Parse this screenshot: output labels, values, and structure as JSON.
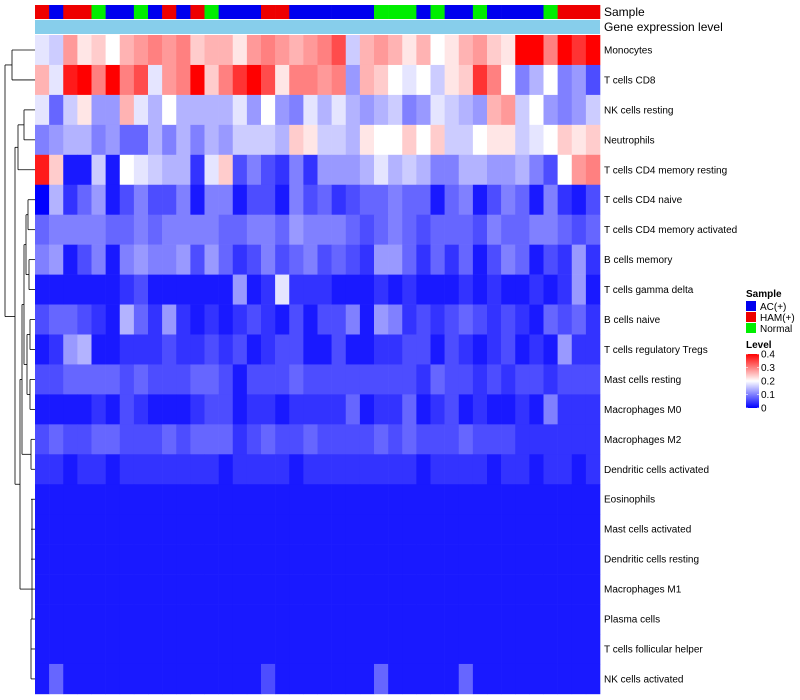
{
  "chart_data": {
    "type": "heatmap",
    "title": "",
    "annotation_tracks": [
      {
        "name": "Sample",
        "key": "sample"
      },
      {
        "name": "Gene expression level",
        "key": "level_band"
      }
    ],
    "annotation_colors": {
      "Sample": {
        "AC(+)": "#0000ee",
        "HAM(+)": "#ee0000",
        "Normal": "#00ee00"
      },
      "Gene expression level": "#87ceeb"
    },
    "columns": [
      {
        "sample": "HAM(+)"
      },
      {
        "sample": "AC(+)"
      },
      {
        "sample": "HAM(+)"
      },
      {
        "sample": "HAM(+)"
      },
      {
        "sample": "Normal"
      },
      {
        "sample": "AC(+)"
      },
      {
        "sample": "AC(+)"
      },
      {
        "sample": "Normal"
      },
      {
        "sample": "AC(+)"
      },
      {
        "sample": "HAM(+)"
      },
      {
        "sample": "AC(+)"
      },
      {
        "sample": "HAM(+)"
      },
      {
        "sample": "Normal"
      },
      {
        "sample": "AC(+)"
      },
      {
        "sample": "AC(+)"
      },
      {
        "sample": "AC(+)"
      },
      {
        "sample": "HAM(+)"
      },
      {
        "sample": "HAM(+)"
      },
      {
        "sample": "AC(+)"
      },
      {
        "sample": "AC(+)"
      },
      {
        "sample": "AC(+)"
      },
      {
        "sample": "AC(+)"
      },
      {
        "sample": "AC(+)"
      },
      {
        "sample": "AC(+)"
      },
      {
        "sample": "Normal"
      },
      {
        "sample": "Normal"
      },
      {
        "sample": "Normal"
      },
      {
        "sample": "AC(+)"
      },
      {
        "sample": "Normal"
      },
      {
        "sample": "AC(+)"
      },
      {
        "sample": "AC(+)"
      },
      {
        "sample": "Normal"
      },
      {
        "sample": "AC(+)"
      },
      {
        "sample": "AC(+)"
      },
      {
        "sample": "AC(+)"
      },
      {
        "sample": "AC(+)"
      },
      {
        "sample": "Normal"
      },
      {
        "sample": "HAM(+)"
      },
      {
        "sample": "HAM(+)"
      },
      {
        "sample": "HAM(+)"
      }
    ],
    "rows": [
      "Monocytes",
      "T cells CD8",
      "NK cells resting",
      "Neutrophils",
      "T cells CD4 memory resting",
      "T cells CD4 naive",
      "T cells CD4 memory activated",
      "B cells memory",
      "T cells gamma delta",
      "B cells naive",
      "T cells regulatory  Tregs",
      "Mast cells resting",
      "Macrophages M0",
      "Macrophages M2",
      "Dendritic cells activated",
      "Eosinophils",
      "Mast cells activated",
      "Dendritic cells resting",
      "Macrophages M1",
      "Plasma cells",
      "T cells follicular helper",
      "NK cells activated"
    ],
    "values": [
      [
        0.18,
        0.16,
        0.28,
        0.22,
        0.24,
        0.2,
        0.26,
        0.28,
        0.3,
        0.28,
        0.3,
        0.24,
        0.26,
        0.26,
        0.22,
        0.28,
        0.3,
        0.28,
        0.26,
        0.28,
        0.3,
        0.34,
        0.16,
        0.26,
        0.28,
        0.26,
        0.22,
        0.26,
        0.2,
        0.22,
        0.26,
        0.28,
        0.24,
        0.22,
        0.4,
        0.4,
        0.3,
        0.4,
        0.36,
        0.4
      ],
      [
        0.26,
        0.18,
        0.38,
        0.4,
        0.3,
        0.4,
        0.3,
        0.34,
        0.18,
        0.28,
        0.3,
        0.4,
        0.24,
        0.3,
        0.36,
        0.4,
        0.34,
        0.22,
        0.3,
        0.3,
        0.28,
        0.3,
        0.12,
        0.26,
        0.24,
        0.2,
        0.18,
        0.2,
        0.16,
        0.22,
        0.24,
        0.36,
        0.3,
        0.2,
        0.1,
        0.14,
        0.2,
        0.1,
        0.12,
        0.06
      ],
      [
        0.18,
        0.08,
        0.16,
        0.22,
        0.12,
        0.12,
        0.26,
        0.18,
        0.14,
        0.2,
        0.14,
        0.14,
        0.14,
        0.14,
        0.18,
        0.12,
        0.2,
        0.12,
        0.1,
        0.18,
        0.14,
        0.18,
        0.14,
        0.12,
        0.14,
        0.16,
        0.1,
        0.12,
        0.18,
        0.16,
        0.14,
        0.12,
        0.26,
        0.28,
        0.16,
        0.2,
        0.12,
        0.1,
        0.12,
        0.16
      ],
      [
        0.1,
        0.12,
        0.14,
        0.14,
        0.1,
        0.12,
        0.08,
        0.08,
        0.14,
        0.1,
        0.14,
        0.1,
        0.14,
        0.12,
        0.16,
        0.16,
        0.16,
        0.14,
        0.24,
        0.22,
        0.16,
        0.16,
        0.14,
        0.22,
        0.2,
        0.2,
        0.24,
        0.2,
        0.24,
        0.16,
        0.16,
        0.2,
        0.22,
        0.22,
        0.16,
        0.18,
        0.2,
        0.24,
        0.22,
        0.24
      ],
      [
        0.38,
        0.24,
        0.02,
        0.02,
        0.16,
        0.02,
        0.2,
        0.18,
        0.16,
        0.14,
        0.14,
        0.04,
        0.18,
        0.24,
        0.06,
        0.1,
        0.06,
        0.04,
        0.1,
        0.04,
        0.12,
        0.12,
        0.12,
        0.14,
        0.18,
        0.14,
        0.16,
        0.14,
        0.1,
        0.1,
        0.14,
        0.14,
        0.12,
        0.12,
        0.14,
        0.1,
        0.06,
        0.2,
        0.28,
        0.3
      ],
      [
        0.0,
        0.14,
        0.04,
        0.08,
        0.12,
        0.02,
        0.06,
        0.1,
        0.06,
        0.06,
        0.1,
        0.02,
        0.1,
        0.1,
        0.02,
        0.06,
        0.06,
        0.02,
        0.1,
        0.06,
        0.08,
        0.04,
        0.06,
        0.08,
        0.08,
        0.1,
        0.08,
        0.08,
        0.02,
        0.08,
        0.1,
        0.02,
        0.06,
        0.1,
        0.08,
        0.02,
        0.1,
        0.04,
        0.02,
        0.06
      ],
      [
        0.08,
        0.1,
        0.1,
        0.1,
        0.1,
        0.08,
        0.08,
        0.1,
        0.08,
        0.1,
        0.1,
        0.1,
        0.1,
        0.08,
        0.08,
        0.1,
        0.1,
        0.08,
        0.12,
        0.1,
        0.1,
        0.1,
        0.08,
        0.06,
        0.08,
        0.1,
        0.08,
        0.06,
        0.08,
        0.08,
        0.08,
        0.06,
        0.1,
        0.08,
        0.08,
        0.1,
        0.1,
        0.08,
        0.06,
        0.08
      ],
      [
        0.1,
        0.12,
        0.02,
        0.06,
        0.1,
        0.02,
        0.1,
        0.12,
        0.1,
        0.1,
        0.12,
        0.06,
        0.12,
        0.08,
        0.04,
        0.06,
        0.1,
        0.06,
        0.08,
        0.1,
        0.06,
        0.08,
        0.06,
        0.04,
        0.12,
        0.12,
        0.08,
        0.04,
        0.08,
        0.04,
        0.08,
        0.02,
        0.06,
        0.1,
        0.08,
        0.02,
        0.06,
        0.04,
        0.12,
        0.04
      ],
      [
        0.02,
        0.02,
        0.02,
        0.02,
        0.02,
        0.02,
        0.04,
        0.06,
        0.02,
        0.02,
        0.02,
        0.02,
        0.02,
        0.02,
        0.12,
        0.02,
        0.04,
        0.18,
        0.04,
        0.04,
        0.04,
        0.02,
        0.02,
        0.02,
        0.04,
        0.02,
        0.04,
        0.02,
        0.02,
        0.02,
        0.04,
        0.02,
        0.04,
        0.02,
        0.02,
        0.04,
        0.02,
        0.04,
        0.12,
        0.02
      ],
      [
        0.06,
        0.08,
        0.08,
        0.06,
        0.04,
        0.02,
        0.14,
        0.08,
        0.04,
        0.12,
        0.04,
        0.02,
        0.04,
        0.02,
        0.04,
        0.06,
        0.04,
        0.02,
        0.06,
        0.02,
        0.06,
        0.06,
        0.1,
        0.02,
        0.12,
        0.1,
        0.04,
        0.06,
        0.04,
        0.06,
        0.08,
        0.06,
        0.04,
        0.06,
        0.04,
        0.02,
        0.08,
        0.06,
        0.08,
        0.04
      ],
      [
        0.02,
        0.04,
        0.12,
        0.14,
        0.02,
        0.02,
        0.04,
        0.04,
        0.04,
        0.06,
        0.04,
        0.04,
        0.06,
        0.04,
        0.06,
        0.02,
        0.04,
        0.06,
        0.06,
        0.02,
        0.02,
        0.06,
        0.02,
        0.02,
        0.04,
        0.04,
        0.06,
        0.06,
        0.02,
        0.06,
        0.04,
        0.02,
        0.04,
        0.06,
        0.02,
        0.04,
        0.02,
        0.12,
        0.04,
        0.04
      ],
      [
        0.06,
        0.06,
        0.08,
        0.08,
        0.08,
        0.08,
        0.06,
        0.08,
        0.06,
        0.06,
        0.06,
        0.08,
        0.08,
        0.06,
        0.02,
        0.06,
        0.06,
        0.06,
        0.08,
        0.06,
        0.06,
        0.06,
        0.06,
        0.06,
        0.06,
        0.06,
        0.06,
        0.04,
        0.08,
        0.06,
        0.06,
        0.04,
        0.06,
        0.04,
        0.06,
        0.06,
        0.04,
        0.06,
        0.06,
        0.06
      ],
      [
        0.02,
        0.02,
        0.02,
        0.02,
        0.04,
        0.02,
        0.06,
        0.04,
        0.02,
        0.02,
        0.02,
        0.04,
        0.06,
        0.06,
        0.02,
        0.04,
        0.04,
        0.02,
        0.04,
        0.04,
        0.04,
        0.04,
        0.08,
        0.02,
        0.04,
        0.04,
        0.08,
        0.02,
        0.04,
        0.06,
        0.02,
        0.04,
        0.02,
        0.02,
        0.04,
        0.02,
        0.1,
        0.04,
        0.04,
        0.04
      ],
      [
        0.06,
        0.08,
        0.06,
        0.06,
        0.08,
        0.08,
        0.06,
        0.06,
        0.06,
        0.08,
        0.06,
        0.08,
        0.08,
        0.08,
        0.04,
        0.06,
        0.08,
        0.06,
        0.06,
        0.08,
        0.06,
        0.06,
        0.06,
        0.06,
        0.08,
        0.06,
        0.08,
        0.06,
        0.06,
        0.06,
        0.08,
        0.06,
        0.06,
        0.06,
        0.04,
        0.04,
        0.04,
        0.04,
        0.04,
        0.04
      ],
      [
        0.04,
        0.04,
        0.02,
        0.04,
        0.04,
        0.02,
        0.04,
        0.04,
        0.04,
        0.04,
        0.04,
        0.04,
        0.04,
        0.02,
        0.04,
        0.04,
        0.04,
        0.04,
        0.02,
        0.04,
        0.04,
        0.04,
        0.04,
        0.04,
        0.04,
        0.04,
        0.04,
        0.02,
        0.04,
        0.04,
        0.04,
        0.04,
        0.02,
        0.04,
        0.04,
        0.02,
        0.04,
        0.04,
        0.02,
        0.04
      ],
      [
        0.02,
        0.02,
        0.02,
        0.02,
        0.02,
        0.02,
        0.02,
        0.02,
        0.02,
        0.02,
        0.02,
        0.02,
        0.02,
        0.02,
        0.02,
        0.02,
        0.02,
        0.02,
        0.02,
        0.02,
        0.02,
        0.02,
        0.02,
        0.02,
        0.02,
        0.02,
        0.02,
        0.02,
        0.02,
        0.02,
        0.02,
        0.02,
        0.02,
        0.02,
        0.02,
        0.02,
        0.02,
        0.02,
        0.02,
        0.02
      ],
      [
        0.02,
        0.02,
        0.02,
        0.02,
        0.02,
        0.02,
        0.02,
        0.02,
        0.02,
        0.02,
        0.02,
        0.02,
        0.02,
        0.02,
        0.02,
        0.02,
        0.02,
        0.02,
        0.02,
        0.02,
        0.02,
        0.02,
        0.02,
        0.02,
        0.02,
        0.02,
        0.02,
        0.02,
        0.02,
        0.02,
        0.02,
        0.02,
        0.02,
        0.02,
        0.02,
        0.02,
        0.02,
        0.02,
        0.02,
        0.02
      ],
      [
        0.02,
        0.02,
        0.02,
        0.02,
        0.02,
        0.02,
        0.02,
        0.02,
        0.02,
        0.02,
        0.02,
        0.02,
        0.02,
        0.02,
        0.02,
        0.02,
        0.02,
        0.02,
        0.02,
        0.02,
        0.02,
        0.02,
        0.02,
        0.02,
        0.02,
        0.02,
        0.02,
        0.02,
        0.02,
        0.02,
        0.02,
        0.02,
        0.02,
        0.02,
        0.02,
        0.02,
        0.02,
        0.02,
        0.02,
        0.02
      ],
      [
        0.02,
        0.02,
        0.02,
        0.02,
        0.02,
        0.02,
        0.02,
        0.02,
        0.02,
        0.02,
        0.02,
        0.02,
        0.02,
        0.02,
        0.02,
        0.02,
        0.02,
        0.02,
        0.02,
        0.02,
        0.02,
        0.02,
        0.02,
        0.02,
        0.02,
        0.02,
        0.02,
        0.02,
        0.02,
        0.02,
        0.02,
        0.02,
        0.02,
        0.02,
        0.02,
        0.02,
        0.02,
        0.02,
        0.02,
        0.02
      ],
      [
        0.02,
        0.02,
        0.02,
        0.02,
        0.02,
        0.02,
        0.02,
        0.02,
        0.02,
        0.02,
        0.02,
        0.02,
        0.02,
        0.02,
        0.02,
        0.02,
        0.02,
        0.02,
        0.02,
        0.02,
        0.02,
        0.02,
        0.02,
        0.02,
        0.02,
        0.02,
        0.02,
        0.02,
        0.02,
        0.02,
        0.02,
        0.02,
        0.02,
        0.02,
        0.02,
        0.02,
        0.02,
        0.02,
        0.02,
        0.02
      ],
      [
        0.02,
        0.02,
        0.02,
        0.02,
        0.02,
        0.02,
        0.02,
        0.02,
        0.02,
        0.02,
        0.02,
        0.02,
        0.02,
        0.02,
        0.02,
        0.02,
        0.02,
        0.02,
        0.02,
        0.02,
        0.02,
        0.02,
        0.02,
        0.02,
        0.02,
        0.02,
        0.02,
        0.02,
        0.02,
        0.02,
        0.02,
        0.02,
        0.02,
        0.02,
        0.02,
        0.02,
        0.02,
        0.02,
        0.02,
        0.02
      ],
      [
        0.02,
        0.08,
        0.02,
        0.02,
        0.02,
        0.02,
        0.02,
        0.02,
        0.02,
        0.02,
        0.02,
        0.02,
        0.02,
        0.02,
        0.02,
        0.02,
        0.06,
        0.02,
        0.02,
        0.02,
        0.02,
        0.02,
        0.02,
        0.02,
        0.08,
        0.02,
        0.02,
        0.02,
        0.02,
        0.02,
        0.08,
        0.02,
        0.02,
        0.02,
        0.02,
        0.02,
        0.02,
        0.02,
        0.02,
        0.02
      ]
    ],
    "color_scale": {
      "min": 0,
      "max": 0.4,
      "stops": [
        {
          "value": 0,
          "color": "#0000ff"
        },
        {
          "value": 0.2,
          "color": "#ffffff"
        },
        {
          "value": 0.4,
          "color": "#ff0000"
        }
      ]
    },
    "legend": {
      "position": "right",
      "sample_title": "Sample",
      "sample_entries": [
        {
          "label": "AC(+)",
          "color": "#0000ee"
        },
        {
          "label": "HAM(+)",
          "color": "#ee0000"
        },
        {
          "label": "Normal",
          "color": "#00ee00"
        }
      ],
      "level_title": "Level",
      "level_ticks": [
        "0.4",
        "0.3",
        "0.2",
        "0.1",
        "0"
      ]
    },
    "row_dendrogram": true
  }
}
